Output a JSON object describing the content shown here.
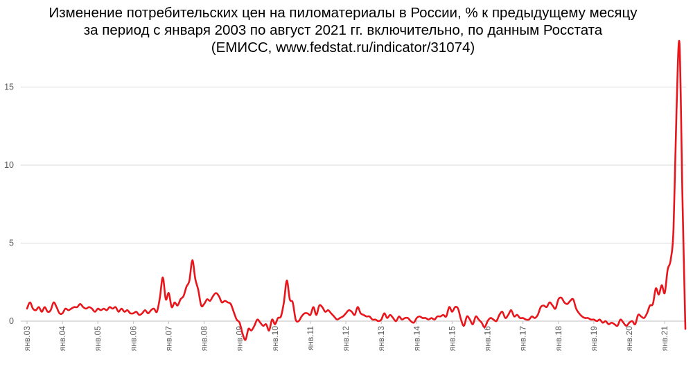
{
  "chart_data": {
    "type": "line",
    "title_lines": [
      "Изменение потребительских цен на пиломатериалы в России, % к предыдущему месяцу",
      "за период с января 2003 по август 2021 гг. включительно, по данным Росстата",
      "(ЕМИСС, www.fedstat.ru/indicator/31074)"
    ],
    "xlabel": "",
    "ylabel": "",
    "ylim": [
      -1.5,
      18
    ],
    "yticks": [
      0,
      5,
      10,
      15
    ],
    "x_tick_labels": [
      "янв.03",
      "янв.04",
      "янв.05",
      "янв.06",
      "янв.07",
      "янв.08",
      "янв.09",
      "янв.10",
      "янв.11",
      "янв.12",
      "янв.13",
      "янв.14",
      "янв.15",
      "янв.16",
      "янв.17",
      "янв.18",
      "янв.19",
      "янв.20",
      "янв.21"
    ],
    "grid": "horizontal",
    "legend": "none",
    "color": "#e8151b",
    "series": [
      {
        "x_start": "2003-01",
        "x_end": "2021-08",
        "frequency": "monthly",
        "values": [
          0.8,
          1.2,
          0.8,
          0.7,
          0.9,
          0.6,
          0.9,
          0.6,
          0.7,
          1.2,
          0.9,
          0.5,
          0.5,
          0.8,
          0.7,
          0.8,
          0.9,
          0.9,
          1.1,
          0.9,
          0.8,
          0.9,
          0.8,
          0.6,
          0.8,
          0.7,
          0.8,
          0.7,
          0.9,
          0.8,
          0.9,
          0.6,
          0.8,
          0.6,
          0.7,
          0.5,
          0.5,
          0.6,
          0.4,
          0.5,
          0.7,
          0.5,
          0.7,
          0.8,
          0.6,
          1.5,
          2.8,
          1.4,
          1.8,
          0.9,
          1.2,
          1.0,
          1.4,
          1.6,
          2.2,
          2.6,
          3.9,
          2.7,
          2.0,
          1.0,
          1.1,
          1.4,
          1.3,
          1.6,
          1.8,
          1.6,
          1.2,
          1.3,
          1.2,
          1.1,
          0.6,
          0.1,
          -0.1,
          -0.8,
          -1.2,
          -0.5,
          -0.6,
          -0.3,
          0.1,
          -0.1,
          -0.3,
          -0.2,
          -0.6,
          0.1,
          -0.2,
          0.2,
          0.3,
          1.2,
          2.6,
          1.4,
          1.2,
          0.1,
          0.0,
          0.3,
          0.5,
          0.5,
          0.4,
          0.9,
          0.4,
          1.0,
          0.9,
          0.6,
          0.7,
          0.5,
          0.3,
          0.1,
          0.2,
          0.3,
          0.5,
          0.7,
          0.6,
          0.4,
          0.9,
          0.5,
          0.4,
          0.3,
          0.3,
          0.1,
          0.1,
          0.0,
          0.1,
          0.5,
          0.2,
          0.4,
          0.2,
          0.0,
          0.3,
          0.1,
          0.2,
          0.2,
          0.0,
          -0.1,
          0.2,
          0.3,
          0.2,
          0.2,
          0.1,
          0.2,
          0.1,
          0.3,
          0.3,
          0.4,
          0.3,
          0.9,
          0.6,
          0.9,
          0.8,
          0.1,
          -0.3,
          0.3,
          0.1,
          -0.2,
          0.3,
          0.1,
          -0.1,
          -0.4,
          0.0,
          0.2,
          0.1,
          0.0,
          0.4,
          0.6,
          0.2,
          0.4,
          0.7,
          0.3,
          0.4,
          0.2,
          0.2,
          0.1,
          0.1,
          0.3,
          0.2,
          0.4,
          0.9,
          1.0,
          0.9,
          1.2,
          1.0,
          0.8,
          1.4,
          1.5,
          1.2,
          1.1,
          1.3,
          1.4,
          0.8,
          0.5,
          0.3,
          0.2,
          0.2,
          0.1,
          0.1,
          0.0,
          0.1,
          -0.1,
          0.0,
          -0.2,
          -0.1,
          -0.2,
          -0.3,
          0.1,
          -0.1,
          -0.3,
          -0.1,
          0.0,
          -0.2,
          0.4,
          0.3,
          0.2,
          0.5,
          1.0,
          1.1,
          2.1,
          1.7,
          2.3,
          1.8,
          3.3,
          3.9,
          6.0,
          13.5,
          17.8,
          8.0,
          -0.5
        ]
      }
    ]
  }
}
